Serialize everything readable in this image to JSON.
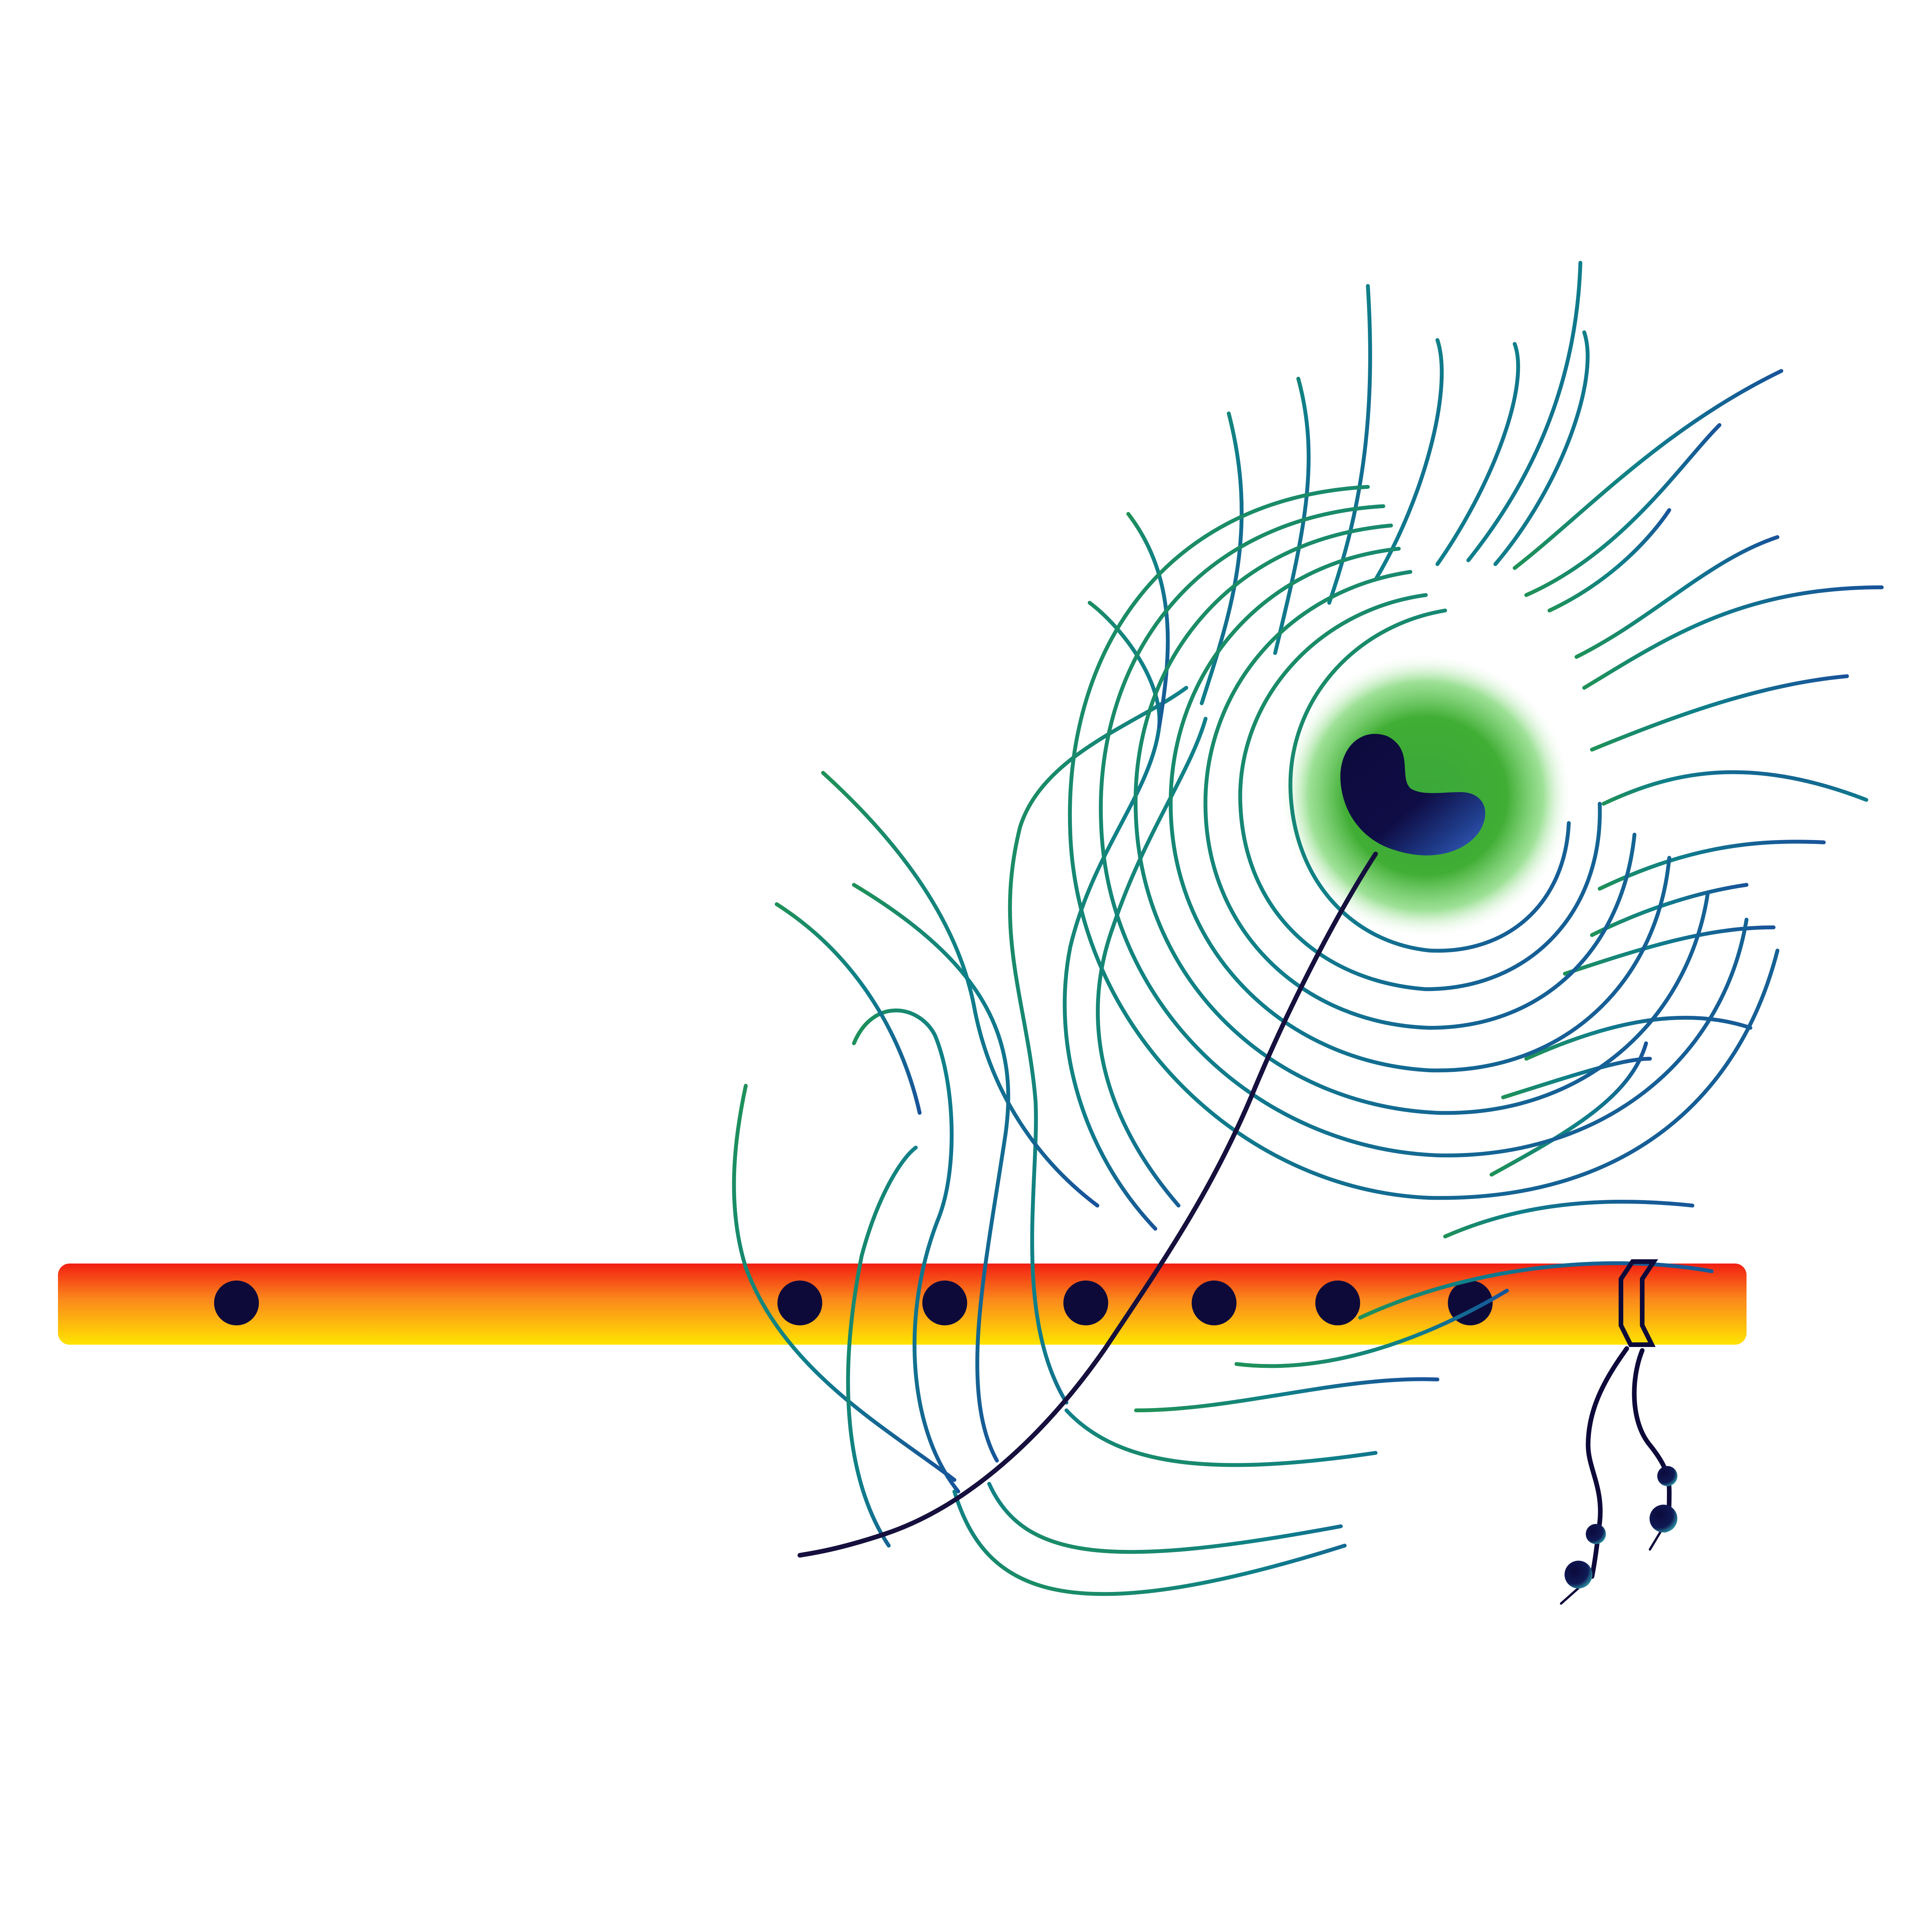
{
  "scene": {
    "subject": "flute-with-peacock-feather",
    "colors": {
      "background": "#ffffff",
      "flute_top": "#f21e12",
      "flute_mid": "#fb8a1c",
      "flute_bottom": "#ffe400",
      "flute_hole": "#0d0a3a",
      "feather_stem": "#15103d",
      "barb_green": "#1f9158",
      "barb_teal": "#0f7f8a",
      "barb_blue": "#18539a",
      "eye_glow": "#3aa83a",
      "eye_core": "#0c0a3c",
      "eye_highlight": "#3b62c8",
      "tassel": "#0d0a3a"
    },
    "flute": {
      "hole_count": 7
    },
    "tassel": {
      "bead_count": 4
    }
  }
}
